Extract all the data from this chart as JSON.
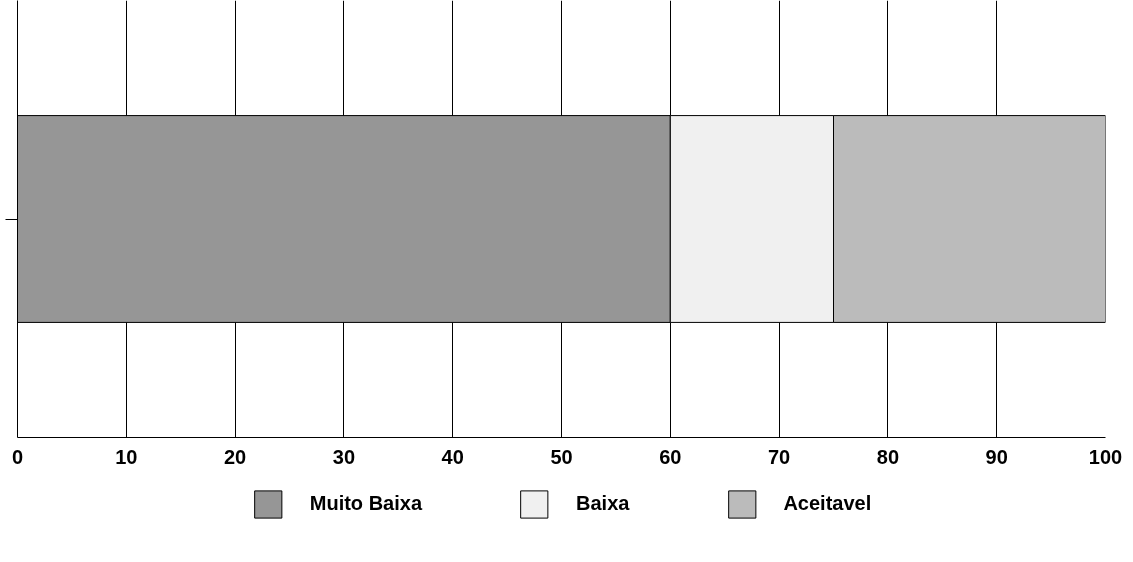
{
  "chart_data": {
    "type": "bar",
    "orientation": "horizontal",
    "stacked": true,
    "categories": [
      null
    ],
    "series": [
      {
        "name": "Muito Baixa",
        "color": "#969696",
        "values": [
          60
        ]
      },
      {
        "name": "Baixa",
        "color": "#f0f0f0",
        "values": [
          15
        ]
      },
      {
        "name": "Aceitavel",
        "color": "#bbbbbb",
        "values": [
          25
        ]
      }
    ],
    "xlim": [
      0,
      100
    ],
    "xticks": [
      0,
      10,
      20,
      30,
      40,
      50,
      60,
      70,
      80,
      90,
      100
    ],
    "grid": "x",
    "legend": "bottom"
  }
}
